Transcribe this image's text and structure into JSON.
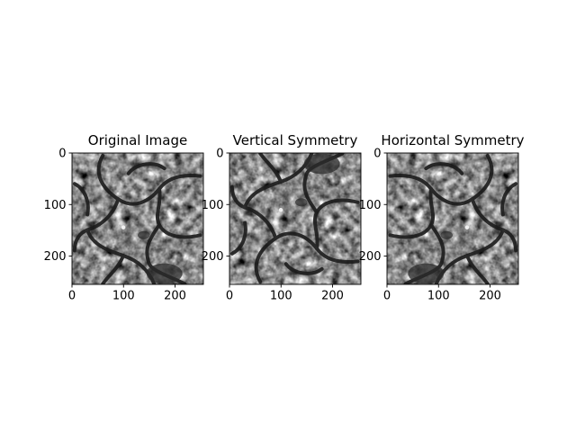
{
  "chart_data": [
    {
      "type": "image",
      "title": "Original Image",
      "image_description": "grayscale cell-like texture",
      "xticks": [
        0,
        100,
        200
      ],
      "yticks": [
        0,
        100,
        200
      ],
      "xlim": [
        0,
        255
      ],
      "ylim": [
        255,
        0
      ],
      "mirror": "none"
    },
    {
      "type": "image",
      "title": "Vertical Symmetry",
      "image_description": "original texture flipped top-to-bottom",
      "xticks": [
        0,
        100,
        200
      ],
      "yticks": [
        0,
        100,
        200
      ],
      "xlim": [
        0,
        255
      ],
      "ylim": [
        255,
        0
      ],
      "mirror": "vertical"
    },
    {
      "type": "image",
      "title": "Horizontal Symmetry",
      "image_description": "original texture flipped left-to-right",
      "xticks": [
        0,
        100,
        200
      ],
      "yticks": [
        0,
        100,
        200
      ],
      "xlim": [
        0,
        255
      ],
      "ylim": [
        255,
        0
      ],
      "mirror": "horizontal"
    }
  ]
}
